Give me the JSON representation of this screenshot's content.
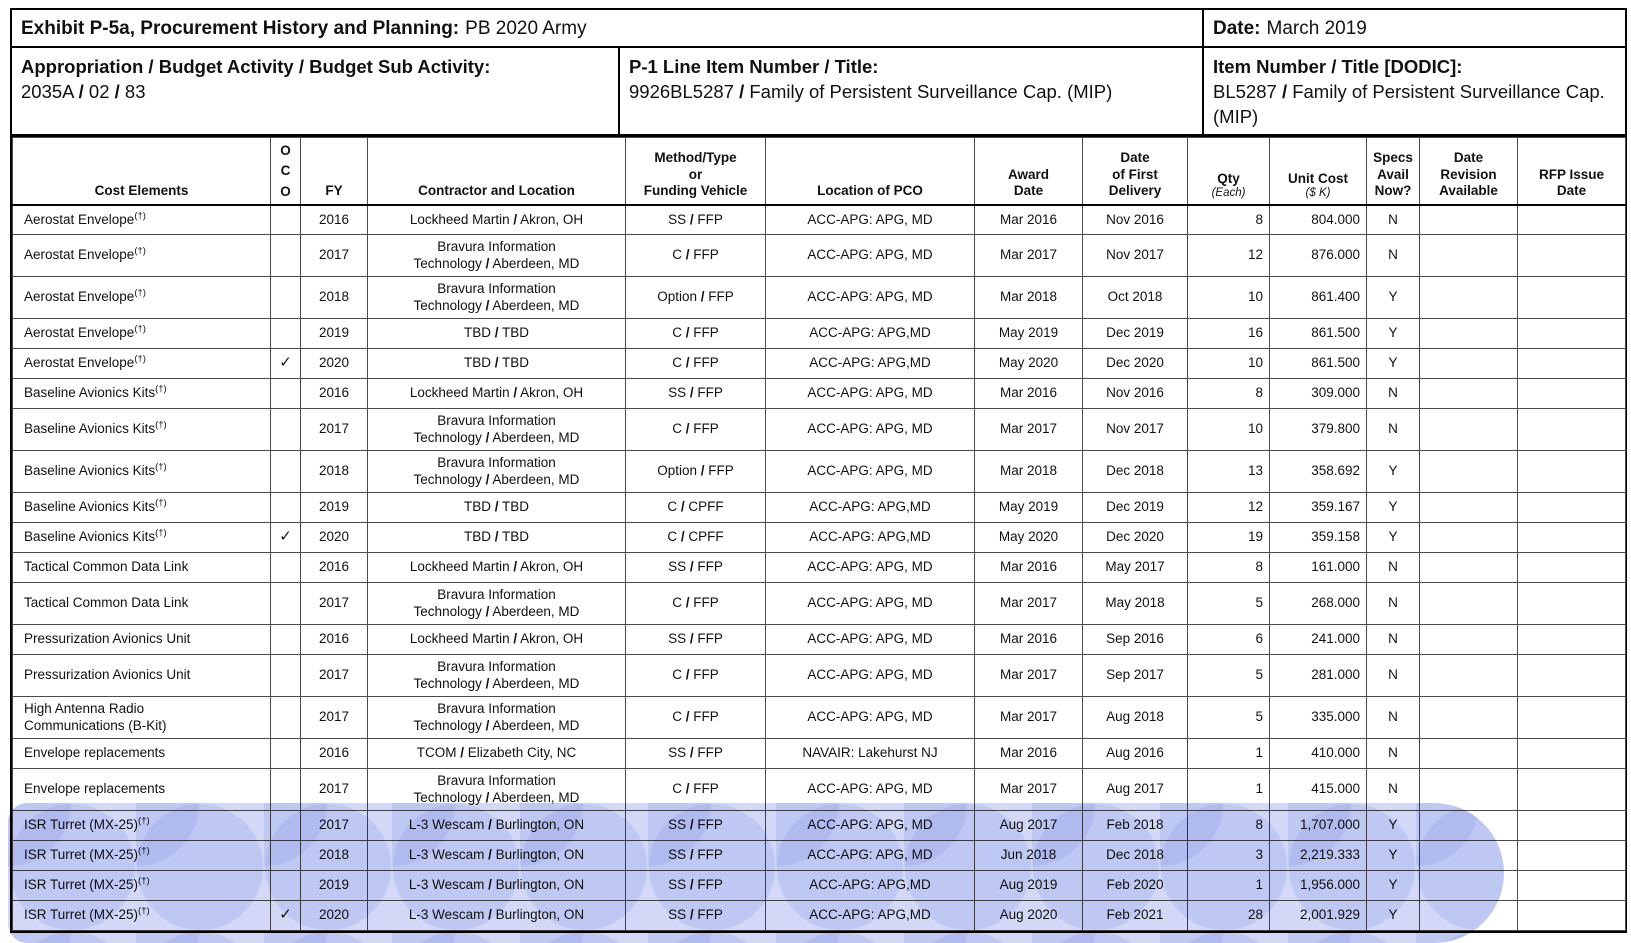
{
  "document": {
    "exhibit_label": "Exhibit P-5a, Procurement History and Planning:",
    "exhibit_value": "PB 2020 Army",
    "date_label": "Date:",
    "date_value": "March 2019",
    "appropriation_label": "Appropriation / Budget Activity / Budget Sub Activity:",
    "appropriation_value": "2035A / 02 / 83",
    "p1_label": "P-1 Line Item Number / Title:",
    "p1_value": "9926BL5287 / Family of Persistent Surveillance Cap. (MIP)",
    "item_label": "Item Number / Title [DODIC]:",
    "item_value": "BL5287 / Family of Persistent Surveillance Cap. (MIP)"
  },
  "table": {
    "dagger_mark": "(†)",
    "check_mark": "✓",
    "highlight_color": "#b7c0f0",
    "columns": [
      {
        "key": "cost_element",
        "label": "Cost Elements"
      },
      {
        "key": "oco",
        "label": "O\nC\nO"
      },
      {
        "key": "fy",
        "label": "FY"
      },
      {
        "key": "contractor",
        "label": "Contractor and Location"
      },
      {
        "key": "method",
        "label": "Method/Type\nor\nFunding Vehicle"
      },
      {
        "key": "pco",
        "label": "Location of PCO"
      },
      {
        "key": "award",
        "label": "Award\nDate"
      },
      {
        "key": "delivery",
        "label": "Date\nof First\nDelivery"
      },
      {
        "key": "qty",
        "label": "Qty",
        "sublabel": "(Each)"
      },
      {
        "key": "unit_cost",
        "label": "Unit Cost",
        "sublabel": "($ K)"
      },
      {
        "key": "specs",
        "label": "Specs\nAvail\nNow?"
      },
      {
        "key": "date_revision",
        "label": "Date\nRevision\nAvailable"
      },
      {
        "key": "rfp",
        "label": "RFP Issue\nDate"
      }
    ],
    "rows": [
      {
        "element": "Aerostat Envelope",
        "dagger": true,
        "oco": false,
        "fy": "2016",
        "contractor": "Lockheed Martin / Akron, OH",
        "method": "SS / FFP",
        "pco": "ACC-APG: APG, MD",
        "award": "Mar 2016",
        "delivery": "Nov 2016",
        "qty": "8",
        "unit_cost": "804.000",
        "specs": "N",
        "date_revision": "",
        "rfp": "",
        "tall": false,
        "highlight": false
      },
      {
        "element": "Aerostat Envelope",
        "dagger": true,
        "oco": false,
        "fy": "2017",
        "contractor": "Bravura Information\nTechnology / Aberdeen, MD",
        "method": "C / FFP",
        "pco": "ACC-APG: APG, MD",
        "award": "Mar 2017",
        "delivery": "Nov 2017",
        "qty": "12",
        "unit_cost": "876.000",
        "specs": "N",
        "date_revision": "",
        "rfp": "",
        "tall": true,
        "highlight": false
      },
      {
        "element": "Aerostat Envelope",
        "dagger": true,
        "oco": false,
        "fy": "2018",
        "contractor": "Bravura Information\nTechnology / Aberdeen, MD",
        "method": "Option / FFP",
        "pco": "ACC-APG: APG, MD",
        "award": "Mar 2018",
        "delivery": "Oct 2018",
        "qty": "10",
        "unit_cost": "861.400",
        "specs": "Y",
        "date_revision": "",
        "rfp": "",
        "tall": true,
        "highlight": false
      },
      {
        "element": "Aerostat Envelope",
        "dagger": true,
        "oco": false,
        "fy": "2019",
        "contractor": "TBD / TBD",
        "method": "C / FFP",
        "pco": "ACC-APG: APG,MD",
        "award": "May 2019",
        "delivery": "Dec 2019",
        "qty": "16",
        "unit_cost": "861.500",
        "specs": "Y",
        "date_revision": "",
        "rfp": "",
        "tall": false,
        "highlight": false
      },
      {
        "element": "Aerostat Envelope",
        "dagger": true,
        "oco": true,
        "fy": "2020",
        "contractor": "TBD / TBD",
        "method": "C / FFP",
        "pco": "ACC-APG: APG,MD",
        "award": "May 2020",
        "delivery": "Dec 2020",
        "qty": "10",
        "unit_cost": "861.500",
        "specs": "Y",
        "date_revision": "",
        "rfp": "",
        "tall": false,
        "highlight": false
      },
      {
        "element": "Baseline Avionics Kits",
        "dagger": true,
        "oco": false,
        "fy": "2016",
        "contractor": "Lockheed Martin / Akron, OH",
        "method": "SS / FFP",
        "pco": "ACC-APG: APG, MD",
        "award": "Mar 2016",
        "delivery": "Nov 2016",
        "qty": "8",
        "unit_cost": "309.000",
        "specs": "N",
        "date_revision": "",
        "rfp": "",
        "tall": false,
        "highlight": false
      },
      {
        "element": "Baseline Avionics Kits",
        "dagger": true,
        "oco": false,
        "fy": "2017",
        "contractor": "Bravura Information\nTechnology / Aberdeen, MD",
        "method": "C / FFP",
        "pco": "ACC-APG: APG, MD",
        "award": "Mar 2017",
        "delivery": "Nov 2017",
        "qty": "10",
        "unit_cost": "379.800",
        "specs": "N",
        "date_revision": "",
        "rfp": "",
        "tall": true,
        "highlight": false
      },
      {
        "element": "Baseline Avionics Kits",
        "dagger": true,
        "oco": false,
        "fy": "2018",
        "contractor": "Bravura Information\nTechnology / Aberdeen, MD",
        "method": "Option / FFP",
        "pco": "ACC-APG: APG, MD",
        "award": "Mar 2018",
        "delivery": "Dec 2018",
        "qty": "13",
        "unit_cost": "358.692",
        "specs": "Y",
        "date_revision": "",
        "rfp": "",
        "tall": true,
        "highlight": false
      },
      {
        "element": "Baseline Avionics Kits",
        "dagger": true,
        "oco": false,
        "fy": "2019",
        "contractor": "TBD / TBD",
        "method": "C / CPFF",
        "pco": "ACC-APG: APG,MD",
        "award": "May 2019",
        "delivery": "Dec 2019",
        "qty": "12",
        "unit_cost": "359.167",
        "specs": "Y",
        "date_revision": "",
        "rfp": "",
        "tall": false,
        "highlight": false
      },
      {
        "element": "Baseline Avionics Kits",
        "dagger": true,
        "oco": true,
        "fy": "2020",
        "contractor": "TBD / TBD",
        "method": "C / CPFF",
        "pco": "ACC-APG: APG,MD",
        "award": "May 2020",
        "delivery": "Dec 2020",
        "qty": "19",
        "unit_cost": "359.158",
        "specs": "Y",
        "date_revision": "",
        "rfp": "",
        "tall": false,
        "highlight": false
      },
      {
        "element": "Tactical Common Data Link",
        "dagger": false,
        "oco": false,
        "fy": "2016",
        "contractor": "Lockheed Martin / Akron, OH",
        "method": "SS / FFP",
        "pco": "ACC-APG: APG, MD",
        "award": "Mar 2016",
        "delivery": "May 2017",
        "qty": "8",
        "unit_cost": "161.000",
        "specs": "N",
        "date_revision": "",
        "rfp": "",
        "tall": false,
        "highlight": false
      },
      {
        "element": "Tactical Common Data Link",
        "dagger": false,
        "oco": false,
        "fy": "2017",
        "contractor": "Bravura Information\nTechnology / Aberdeen, MD",
        "method": "C / FFP",
        "pco": "ACC-APG: APG, MD",
        "award": "Mar 2017",
        "delivery": "May 2018",
        "qty": "5",
        "unit_cost": "268.000",
        "specs": "N",
        "date_revision": "",
        "rfp": "",
        "tall": true,
        "highlight": false
      },
      {
        "element": "Pressurization Avionics Unit",
        "dagger": false,
        "oco": false,
        "fy": "2016",
        "contractor": "Lockheed Martin / Akron, OH",
        "method": "SS / FFP",
        "pco": "ACC-APG: APG, MD",
        "award": "Mar 2016",
        "delivery": "Sep 2016",
        "qty": "6",
        "unit_cost": "241.000",
        "specs": "N",
        "date_revision": "",
        "rfp": "",
        "tall": false,
        "highlight": false
      },
      {
        "element": "Pressurization Avionics Unit",
        "dagger": false,
        "oco": false,
        "fy": "2017",
        "contractor": "Bravura Information\nTechnology / Aberdeen, MD",
        "method": "C / FFP",
        "pco": "ACC-APG: APG, MD",
        "award": "Mar 2017",
        "delivery": "Sep 2017",
        "qty": "5",
        "unit_cost": "281.000",
        "specs": "N",
        "date_revision": "",
        "rfp": "",
        "tall": true,
        "highlight": false
      },
      {
        "element": "High Antenna Radio\nCommunications (B-Kit)",
        "dagger": false,
        "oco": false,
        "fy": "2017",
        "contractor": "Bravura Information\nTechnology / Aberdeen, MD",
        "method": "C / FFP",
        "pco": "ACC-APG: APG, MD",
        "award": "Mar 2017",
        "delivery": "Aug 2018",
        "qty": "5",
        "unit_cost": "335.000",
        "specs": "N",
        "date_revision": "",
        "rfp": "",
        "tall": true,
        "highlight": false
      },
      {
        "element": "Envelope replacements",
        "dagger": false,
        "oco": false,
        "fy": "2016",
        "contractor": "TCOM / Elizabeth City, NC",
        "method": "SS / FFP",
        "pco": "NAVAIR: Lakehurst NJ",
        "award": "Mar 2016",
        "delivery": "Aug 2016",
        "qty": "1",
        "unit_cost": "410.000",
        "specs": "N",
        "date_revision": "",
        "rfp": "",
        "tall": false,
        "highlight": false
      },
      {
        "element": "Envelope replacements",
        "dagger": false,
        "oco": false,
        "fy": "2017",
        "contractor": "Bravura Information\nTechnology / Aberdeen, MD",
        "method": "C / FFP",
        "pco": "ACC-APG: APG, MD",
        "award": "Mar 2017",
        "delivery": "Aug 2017",
        "qty": "1",
        "unit_cost": "415.000",
        "specs": "N",
        "date_revision": "",
        "rfp": "",
        "tall": true,
        "highlight": false
      },
      {
        "element": "ISR Turret (MX-25)",
        "dagger": true,
        "oco": false,
        "fy": "2017",
        "contractor": "L-3 Wescam / Burlington, ON",
        "method": "SS / FFP",
        "pco": "ACC-APG: APG, MD",
        "award": "Aug 2017",
        "delivery": "Feb 2018",
        "qty": "8",
        "unit_cost": "1,707.000",
        "specs": "Y",
        "date_revision": "",
        "rfp": "",
        "tall": false,
        "highlight": true
      },
      {
        "element": "ISR Turret (MX-25)",
        "dagger": true,
        "oco": false,
        "fy": "2018",
        "contractor": "L-3 Wescam / Burlington, ON",
        "method": "SS / FFP",
        "pco": "ACC-APG: APG, MD",
        "award": "Jun 2018",
        "delivery": "Dec 2018",
        "qty": "3",
        "unit_cost": "2,219.333",
        "specs": "Y",
        "date_revision": "",
        "rfp": "",
        "tall": false,
        "highlight": true
      },
      {
        "element": "ISR Turret (MX-25)",
        "dagger": true,
        "oco": false,
        "fy": "2019",
        "contractor": "L-3 Wescam / Burlington, ON",
        "method": "SS / FFP",
        "pco": "ACC-APG: APG,MD",
        "award": "Aug 2019",
        "delivery": "Feb 2020",
        "qty": "1",
        "unit_cost": "1,956.000",
        "specs": "Y",
        "date_revision": "",
        "rfp": "",
        "tall": false,
        "highlight": true
      },
      {
        "element": "ISR Turret (MX-25)",
        "dagger": true,
        "oco": true,
        "fy": "2020",
        "contractor": "L-3 Wescam / Burlington, ON",
        "method": "SS / FFP",
        "pco": "ACC-APG: APG,MD",
        "award": "Aug 2020",
        "delivery": "Feb 2021",
        "qty": "28",
        "unit_cost": "2,001.929",
        "specs": "Y",
        "date_revision": "",
        "rfp": "",
        "tall": false,
        "highlight": true
      }
    ]
  }
}
